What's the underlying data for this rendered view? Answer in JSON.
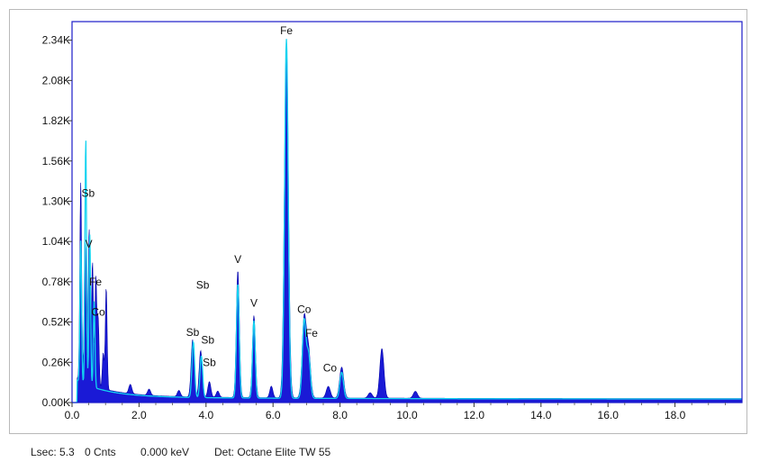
{
  "chart_data": {
    "type": "area",
    "title": "",
    "xlabel": "",
    "ylabel": "",
    "xlim": [
      0,
      20
    ],
    "ylim": [
      0,
      2460
    ],
    "x_ticks": [
      "0.0",
      "2.0",
      "4.0",
      "6.0",
      "8.0",
      "10.0",
      "12.0",
      "14.0",
      "16.0",
      "18.0"
    ],
    "x_tick_values": [
      0,
      2,
      4,
      6,
      8,
      10,
      12,
      14,
      16,
      18
    ],
    "y_ticks": [
      "0.00K",
      "0.26K",
      "0.52K",
      "0.78K",
      "1.04K",
      "1.30K",
      "1.56K",
      "1.82K",
      "2.08K",
      "2.34K"
    ],
    "y_tick_values": [
      0,
      260,
      520,
      780,
      1040,
      1300,
      1560,
      1820,
      2080,
      2340
    ],
    "grid": false,
    "colors": {
      "spectrum_fill": "#1a1ad6",
      "spectrum_dark": "#0000a8",
      "overlay_line": "#13d3f0",
      "plot_border": "#1c1cc8",
      "axis_text": "#111111"
    },
    "peaks": [
      {
        "x": 0.26,
        "y": 1280
      },
      {
        "x": 0.39,
        "y": 920
      },
      {
        "x": 0.51,
        "y": 1010
      },
      {
        "x": 0.61,
        "y": 800
      },
      {
        "x": 0.71,
        "y": 700
      },
      {
        "x": 0.78,
        "y": 440
      },
      {
        "x": 0.93,
        "y": 230
      },
      {
        "x": 1.02,
        "y": 660
      },
      {
        "x": 1.74,
        "y": 60
      },
      {
        "x": 2.3,
        "y": 40
      },
      {
        "x": 3.19,
        "y": 40
      },
      {
        "x": 3.6,
        "y": 370
      },
      {
        "x": 3.84,
        "y": 300
      },
      {
        "x": 4.1,
        "y": 100
      },
      {
        "x": 4.35,
        "y": 40
      },
      {
        "x": 4.95,
        "y": 820
      },
      {
        "x": 5.43,
        "y": 530
      },
      {
        "x": 5.95,
        "y": 75
      },
      {
        "x": 6.4,
        "y": 2300
      },
      {
        "x": 6.93,
        "y": 510
      },
      {
        "x": 7.06,
        "y": 300
      },
      {
        "x": 7.65,
        "y": 75
      },
      {
        "x": 8.05,
        "y": 200
      },
      {
        "x": 8.9,
        "y": 35
      },
      {
        "x": 9.25,
        "y": 320
      },
      {
        "x": 10.25,
        "y": 45
      }
    ],
    "overlay_peaks": [
      {
        "x": 0.26,
        "y": 920
      },
      {
        "x": 0.41,
        "y": 1600
      },
      {
        "x": 0.53,
        "y": 980
      },
      {
        "x": 0.66,
        "y": 560
      },
      {
        "x": 3.62,
        "y": 360
      },
      {
        "x": 3.86,
        "y": 270
      },
      {
        "x": 4.95,
        "y": 740
      },
      {
        "x": 5.43,
        "y": 500
      },
      {
        "x": 6.4,
        "y": 2320
      },
      {
        "x": 6.93,
        "y": 500
      },
      {
        "x": 7.06,
        "y": 280
      },
      {
        "x": 8.05,
        "y": 170
      }
    ],
    "annotations": [
      {
        "label": "Fe",
        "x": 6.4,
        "y": 2380
      },
      {
        "label": "Sb",
        "x": 0.48,
        "y": 1330
      },
      {
        "label": "V",
        "x": 0.5,
        "y": 1000
      },
      {
        "label": "Fe",
        "x": 0.7,
        "y": 755
      },
      {
        "label": "Co",
        "x": 0.78,
        "y": 560
      },
      {
        "label": "Sb",
        "x": 3.9,
        "y": 735
      },
      {
        "label": "V",
        "x": 4.95,
        "y": 900
      },
      {
        "label": "V",
        "x": 5.43,
        "y": 620
      },
      {
        "label": "Co",
        "x": 6.93,
        "y": 580
      },
      {
        "label": "Fe",
        "x": 7.15,
        "y": 425
      },
      {
        "label": "Sb",
        "x": 3.6,
        "y": 430
      },
      {
        "label": "Sb",
        "x": 4.05,
        "y": 380
      },
      {
        "label": "Sb",
        "x": 4.1,
        "y": 235
      },
      {
        "label": "Co",
        "x": 7.7,
        "y": 200
      }
    ]
  },
  "status_bar": {
    "lsec": "Lsec: 5.3",
    "counts": "0 Cnts",
    "energy": "0.000 keV",
    "detector": "Det: Octane Elite TW 55"
  }
}
